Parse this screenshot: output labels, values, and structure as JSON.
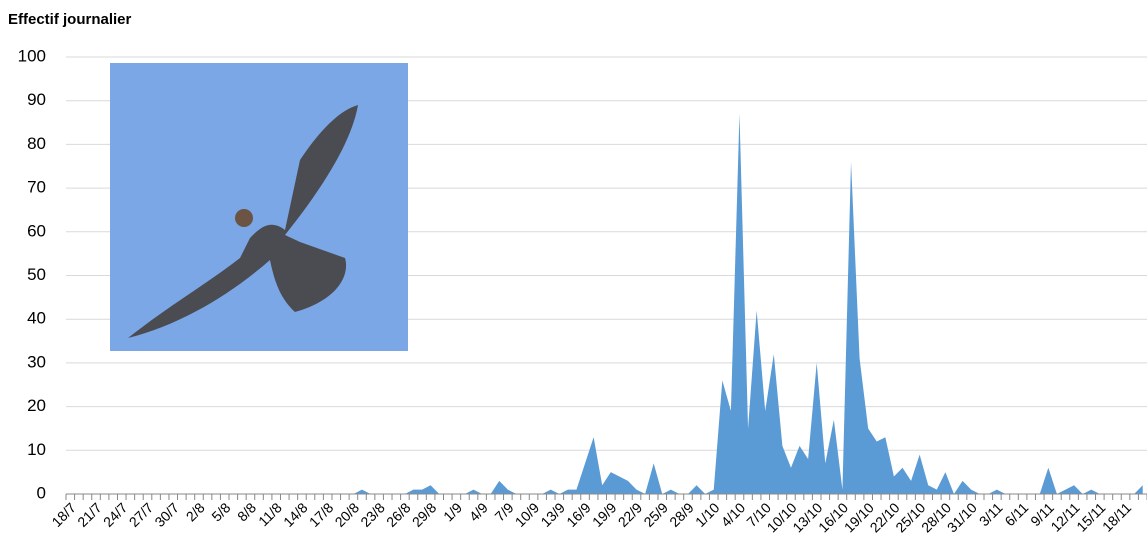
{
  "chart_data": {
    "type": "area",
    "title": "Effectif journalier",
    "categories": [
      "18/7",
      null,
      null,
      "21/7",
      null,
      null,
      "24/7",
      null,
      null,
      "27/7",
      null,
      null,
      "30/7",
      null,
      null,
      "2/8",
      null,
      null,
      "5/8",
      null,
      null,
      "8/8",
      null,
      null,
      "11/8",
      null,
      null,
      "14/8",
      null,
      null,
      "17/8",
      null,
      null,
      "20/8",
      null,
      null,
      "23/8",
      null,
      null,
      "26/8",
      null,
      null,
      "29/8",
      null,
      null,
      "1/9",
      null,
      null,
      "4/9",
      null,
      null,
      "7/9",
      null,
      null,
      "10/9",
      null,
      null,
      "13/9",
      null,
      null,
      "16/9",
      null,
      null,
      "19/9",
      null,
      null,
      "22/9",
      null,
      null,
      "25/9",
      null,
      null,
      "28/9",
      null,
      null,
      "1/10",
      null,
      null,
      "4/10",
      null,
      null,
      "7/10",
      null,
      null,
      "10/10",
      null,
      null,
      "13/10",
      null,
      null,
      "16/10",
      null,
      null,
      "19/10",
      null,
      null,
      "22/10",
      null,
      null,
      "25/10",
      null,
      null,
      "28/10",
      null,
      null,
      "31/10",
      null,
      null,
      "3/11",
      null,
      null,
      "6/11",
      null,
      null,
      "9/11",
      null,
      null,
      "12/11",
      null,
      null,
      "15/11",
      null,
      null,
      "18/11",
      null,
      null
    ],
    "values": [
      0,
      0,
      0,
      0,
      0,
      0,
      0,
      0,
      0,
      0,
      0,
      0,
      0,
      0,
      0,
      0,
      0,
      0,
      0,
      0,
      0,
      0,
      0,
      0,
      0,
      0,
      0,
      0,
      0,
      0,
      0,
      0,
      0,
      0,
      1,
      0,
      0,
      0,
      0,
      0,
      1,
      1,
      2,
      0,
      0,
      0,
      0,
      1,
      0,
      0,
      3,
      1,
      0,
      0,
      0,
      0,
      1,
      0,
      1,
      1,
      7,
      13,
      2,
      5,
      4,
      3,
      1,
      0,
      7,
      0,
      1,
      0,
      0,
      2,
      0,
      1,
      26,
      19,
      87,
      15,
      42,
      19,
      32,
      11,
      6,
      11,
      8,
      30,
      7,
      17,
      1,
      76,
      31,
      15,
      12,
      13,
      4,
      6,
      3,
      9,
      2,
      1,
      5,
      0,
      3,
      1,
      0,
      0,
      1,
      0,
      0,
      0,
      0,
      0,
      6,
      0,
      1,
      2,
      0,
      1,
      0,
      0,
      0,
      0,
      0,
      2
    ],
    "color": "#5b9bd5",
    "ylim": [
      0,
      100
    ],
    "yticks": [
      0,
      10,
      20,
      30,
      40,
      50,
      60,
      70,
      80,
      90,
      100
    ],
    "grid": true
  }
}
